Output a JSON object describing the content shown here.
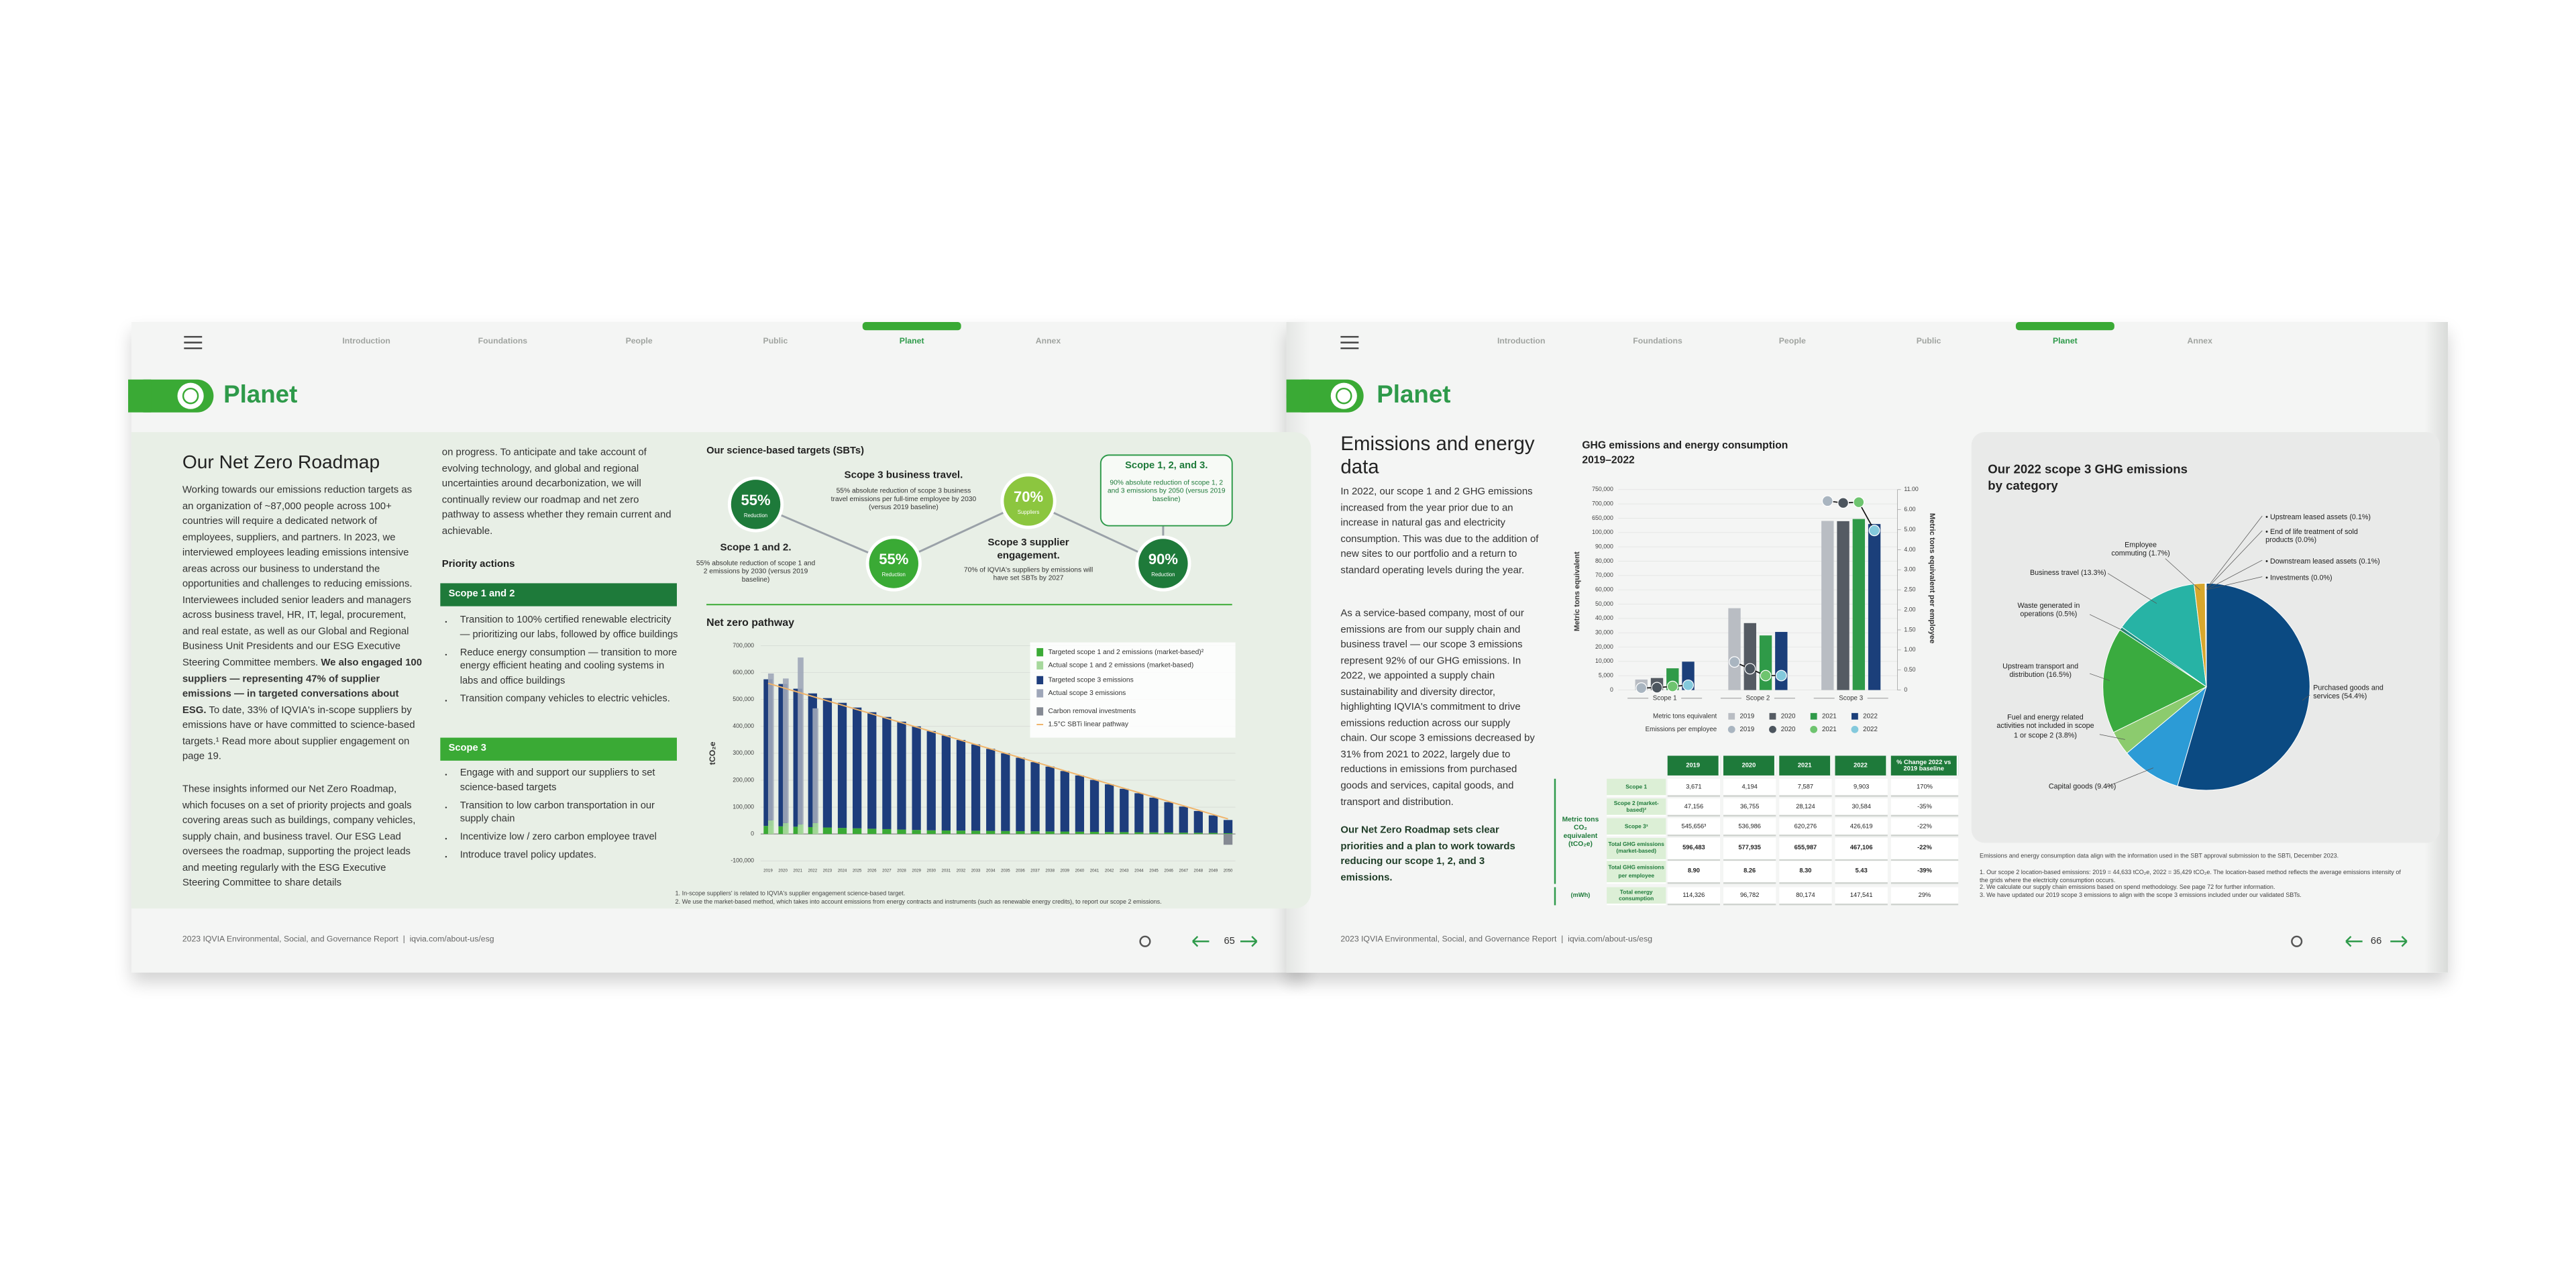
{
  "nav": [
    "Introduction",
    "Foundations",
    "People",
    "Public",
    "Planet",
    "Annex"
  ],
  "section": "Planet",
  "footer": "2023 IQVIA Environmental, Social, and Governance Report  |  iqvia.com/about-us/esg",
  "left_page": {
    "page_number": 65,
    "heading": "Our Net Zero Roadmap",
    "paragraph_1": {
      "before": "Working towards our emissions reduction targets as an organization of ~87,000 people across 100+ countries will require a dedicated network of employees, suppliers, and partners. In 2023, we interviewed employees leading emissions intensive areas across our business to understand the opportunities and challenges to reducing emissions. Interviewees included senior leaders and managers across business travel, HR, IT, legal, procurement, and real estate, as well as our Global and Regional Business Unit Presidents and our ESG Executive Steering Committee members. ",
      "bold": "We also engaged 100 suppliers — representing 47% of supplier emissions — in targeted conversations about ESG.",
      "after": " To date, 33% of IQVIA's in-scope suppliers by emissions have or have committed to science-based targets.¹ Read more about supplier engagement on page 19."
    },
    "paragraph_2": "These insights informed our Net Zero Roadmap, which focuses on a set of priority projects and goals covering areas such as buildings, company vehicles, supply chain, and business travel. Our ESG Lead oversees the roadmap, supporting the project leads and meeting regularly with the ESG Executive Steering Committee to share details",
    "paragraph_3": "on progress. To anticipate and take account of evolving technology, and global and regional uncertainties around decarbonization, we will continually review our roadmap and net zero pathway to assess whether they remain current and achievable.",
    "priority_actions": "Priority actions",
    "scope_1_2": {
      "title": "Scope 1 and 2",
      "bullets": [
        "Transition to 100% certified renewable electricity — prioritizing our labs, followed by office buildings",
        "Reduce energy consumption — transition to more energy efficient heating and cooling systems in labs and office buildings",
        "Transition company vehicles to electric vehicles."
      ]
    },
    "scope_3": {
      "title": "Scope 3",
      "bullets": [
        "Engage with and support our suppliers to set science-based targets",
        "Transition to low carbon transportation in our supply chain",
        "Incentivize low / zero carbon employee travel",
        "Introduce travel policy updates."
      ]
    },
    "sbt": {
      "title": "Our science-based targets (SBTs)",
      "targets": [
        {
          "value": "55%",
          "caption": "Reduction",
          "title": "Scope 1 and 2.",
          "text": "55% absolute reduction of scope 1 and 2 emissions by 2030 (versus 2019 baseline)"
        },
        {
          "value": "55%",
          "caption": "Reduction",
          "title": "Scope 3 business travel.",
          "text": "55% absolute reduction of scope 3 business travel emissions per full-time employee by 2030 (versus 2019 baseline)"
        },
        {
          "value": "70%",
          "caption": "Suppliers",
          "title": "Scope 3 supplier engagement.",
          "text": "70% of IQVIA's suppliers by emissions will have set SBTs by 2027"
        },
        {
          "value": "90%",
          "caption": "Reduction",
          "title": "Scope 1, 2, and 3.",
          "text": "90% absolute reduction of scope 1, 2 and 3 emissions by 2050 (versus 2019 baseline)"
        }
      ]
    },
    "footnotes": [
      "1. In-scope suppliers' is related to IQVIA's supplier engagement science-based target.",
      "2. We use the market-based method, which takes into account emissions from energy contracts and instruments (such as renewable energy credits), to report our scope 2 emissions."
    ]
  },
  "right_page": {
    "page_number": 66,
    "heading": "Emissions and energy data",
    "paragraphs": [
      "In 2022, our scope 1 and 2 GHG emissions increased from the year prior due to an increase in natural gas and electricity consumption. This was due to the addition of new sites to our portfolio and a return to standard operating levels during the year.",
      "As a service-based company, most of our emissions are from our supply chain and business travel — our scope 3 emissions represent 92% of our GHG emissions. In 2022, we appointed a supply chain sustainability and diversity director, highlighting IQVIA's commitment to drive emissions reduction across our supply chain. Our scope 3 emissions decreased by 31% from 2021 to 2022, largely due to reductions in emissions from purchased goods and services, capital goods, and transport and distribution."
    ],
    "bold_paragraph": "Our Net Zero Roadmap sets clear priorities and a plan to work towards reducing our scope 1, 2, and 3 emissions.",
    "table": {
      "header": [
        "2019",
        "2020",
        "2021",
        "2022",
        "% Change 2022 vs 2019 baseline"
      ],
      "group_labels": [
        "Metric tons CO₂ equivalent (tCO₂e)",
        "(mWh)"
      ],
      "rows": [
        [
          "Scope 1",
          "3,671",
          "4,194",
          "7,587",
          "9,903",
          "170%"
        ],
        [
          "Scope 2 (market-based)²",
          "47,156",
          "36,755",
          "28,124",
          "30,584",
          "-35%"
        ],
        [
          "Scope 3³",
          "545,656³",
          "536,986",
          "620,276",
          "426,619",
          "-22%"
        ],
        [
          "Total GHG emissions (market-based)",
          "596,483",
          "577,935",
          "655,987",
          "467,106",
          "-22%"
        ],
        [
          "Total GHG emissions per employee",
          "8.90",
          "8.26",
          "8.30",
          "5.43",
          "-39%"
        ],
        [
          "Total energy consumption",
          "114,326",
          "96,782",
          "80,174",
          "147,541",
          "29%"
        ]
      ]
    },
    "pie_note": "Emissions and energy consumption data align with the information used in the SBT approval submission to the SBTi, December 2023.",
    "footnotes": [
      "1. Our scope 2 location-based emissions: 2019 = 44,633 tCO₂e, 2022 = 35,429 tCO₂e. The location-based method reflects the average emissions intensity of the grids where the electricity consumption occurs.",
      "2. We calculate our supply chain emissions based on spend methodology. See page 72 for further information.",
      "3. We have updated our 2019 scope 3 emissions to align with the scope 3 emissions included under our validated SBTs."
    ]
  },
  "chart_data": [
    {
      "type": "bar",
      "title": "Net zero pathway",
      "y_label": "tCO₂e",
      "categories": [
        "2019",
        "2020",
        "2021",
        "2022",
        "2023",
        "2024",
        "2025",
        "2026",
        "2027",
        "2028",
        "2029",
        "2030",
        "2031",
        "2032",
        "2033",
        "2034",
        "2035",
        "2036",
        "2037",
        "2038",
        "2039",
        "2040",
        "2041",
        "2042",
        "2043",
        "2044",
        "2045",
        "2046",
        "2047",
        "2048",
        "2049",
        "2050"
      ],
      "ylim": [
        -100000,
        700000
      ],
      "yticks": [
        {
          "value": 700000,
          "label": "700,000"
        },
        {
          "value": 600000,
          "label": "600,000"
        },
        {
          "value": 500000,
          "label": "500,000"
        },
        {
          "value": 400000,
          "label": "400,000"
        },
        {
          "value": 300000,
          "label": "300,000"
        },
        {
          "value": 200000,
          "label": "200,000"
        },
        {
          "value": 100000,
          "label": "100,000"
        },
        0,
        {
          "value": -100000,
          "label": "-100,000"
        }
      ],
      "grid": true,
      "series": [
        {
          "name": "Targeted scope 1 and 2 emissions (market-based)²",
          "color": "#3aaa35",
          "values": [
            30000,
            28500,
            27000,
            25500,
            24000,
            22500,
            21000,
            19500,
            18000,
            16500,
            15000,
            13500,
            13000,
            12500,
            12000,
            11500,
            11000,
            10500,
            10000,
            9500,
            9000,
            8500,
            8000,
            7500,
            7000,
            6500,
            6000,
            5500,
            5000,
            4500,
            4000,
            3000
          ]
        },
        {
          "name": "Actual scope 1 and 2 emissions (market-based)",
          "color": "#a6d89c",
          "values": [
            50827,
            40949,
            35711,
            40487,
            null,
            null,
            null,
            null,
            null,
            null,
            null,
            null,
            null,
            null,
            null,
            null,
            null,
            null,
            null,
            null,
            null,
            null,
            null,
            null,
            null,
            null,
            null,
            null,
            null,
            null,
            null,
            null
          ]
        },
        {
          "name": "Targeted scope 3 emissions",
          "color": "#1d3d7c",
          "values": [
            545000,
            529000,
            513000,
            497000,
            481000,
            465000,
            449000,
            433000,
            417000,
            401000,
            385000,
            369000,
            353000,
            337000,
            321000,
            305000,
            289000,
            273000,
            257000,
            241000,
            225000,
            209000,
            193000,
            177000,
            161000,
            145000,
            129000,
            113000,
            97000,
            81000,
            65000,
            49000
          ]
        },
        {
          "name": "Actual scope 3 emissions",
          "color": "#9ea6b8",
          "values": [
            545656,
            536986,
            620276,
            426619,
            null,
            null,
            null,
            null,
            null,
            null,
            null,
            null,
            null,
            null,
            null,
            null,
            null,
            null,
            null,
            null,
            null,
            null,
            null,
            null,
            null,
            null,
            null,
            null,
            null,
            null,
            null,
            null
          ]
        },
        {
          "name": "Carbon removal investments",
          "color": "#858a93",
          "values": [
            null,
            null,
            null,
            null,
            null,
            null,
            null,
            null,
            null,
            null,
            null,
            null,
            null,
            null,
            null,
            null,
            null,
            null,
            null,
            null,
            null,
            null,
            null,
            null,
            null,
            null,
            null,
            null,
            null,
            null,
            null,
            -40000
          ]
        }
      ],
      "pathway": {
        "name": "1.5°C SBTi linear pathway",
        "color": "#f0b46a",
        "x": [
          "2019",
          "2050"
        ],
        "values": [
          560000,
          56000
        ]
      }
    },
    {
      "type": "bar",
      "title": "GHG emissions and energy consumption 2019–2022",
      "y_label": "Metric tons equivalent",
      "y2_label": "Metric tons equivalent per employee",
      "legend_bars": "Metric tons equivalent",
      "legend_dots": "Emissions per employee",
      "categories": [
        "Scope 1",
        "Scope 2",
        "Scope 3"
      ],
      "ylim": [
        0,
        750000
      ],
      "yticks": [
        0,
        {
          "value": 5000,
          "label": "5,000"
        },
        {
          "value": 10000,
          "label": "10,000"
        },
        {
          "value": 20000,
          "label": "20,000"
        },
        {
          "value": 30000,
          "label": "30,000"
        },
        {
          "value": 40000,
          "label": "40,000"
        },
        {
          "value": 50000,
          "label": "50,000"
        },
        {
          "value": 60000,
          "label": "60,000"
        },
        {
          "value": 70000,
          "label": "70,000"
        },
        {
          "value": 80000,
          "label": "80,000"
        },
        {
          "value": 90000,
          "label": "90,000"
        },
        {
          "value": 100000,
          "label": "100,000"
        },
        {
          "value": 650000,
          "label": "650,000"
        },
        {
          "value": 700000,
          "label": "700,000"
        },
        {
          "value": 750000,
          "label": "750,000"
        }
      ],
      "y2lim": [
        0,
        11
      ],
      "y2ticks": [
        0,
        {
          "value": 0.5,
          "label": "0.50"
        },
        {
          "value": 1,
          "label": "1.00"
        },
        {
          "value": 1.5,
          "label": "1.50"
        },
        {
          "value": 2,
          "label": "2.00"
        },
        {
          "value": 2.5,
          "label": "2.50"
        },
        {
          "value": 3,
          "label": "3.00"
        },
        {
          "value": 4,
          "label": "4.00"
        },
        {
          "value": 5,
          "label": "5.00"
        },
        {
          "value": 6,
          "label": "6.00"
        },
        {
          "value": 11,
          "label": "11.00"
        }
      ],
      "series": [
        {
          "name": "2019",
          "color": "#b9bdc3",
          "values": [
            3671,
            47156,
            545656
          ]
        },
        {
          "name": "2020",
          "color": "#555b63",
          "values": [
            4194,
            36755,
            536986
          ]
        },
        {
          "name": "2021",
          "color": "#2f9a48",
          "values": [
            7587,
            28124,
            620276
          ]
        },
        {
          "name": "2022",
          "color": "#1b3f7a",
          "values": [
            9903,
            30584,
            426619
          ]
        },
        {
          "name": "2019",
          "color": "#a9b5c0",
          "axis": "y2",
          "values": [
            0.05,
            0.7,
            8.15
          ]
        },
        {
          "name": "2020",
          "color": "#4c555e",
          "axis": "y2",
          "values": [
            0.06,
            0.53,
            7.67
          ]
        },
        {
          "name": "2021",
          "color": "#6ec46f",
          "axis": "y2",
          "values": [
            0.09,
            0.36,
            7.85
          ]
        },
        {
          "name": "2022",
          "color": "#83c9dc",
          "axis": "y2",
          "values": [
            0.12,
            0.36,
            4.96
          ]
        }
      ]
    },
    {
      "type": "pie",
      "title": "Our 2022 scope 3 GHG emissions by category",
      "categories": [
        "Purchased goods and services",
        "Capital goods",
        "Fuel and energy related activities not included in scope 1 or scope 2",
        "Upstream transport and distribution",
        "Waste generated in operations",
        "Business travel",
        "Employee commuting",
        "Upstream leased assets",
        "End of life treatment of sold products",
        "Downstream leased assets",
        "Investments"
      ],
      "values": [
        54.4,
        9.4,
        3.8,
        16.5,
        0.5,
        13.3,
        1.7,
        0.1,
        0.0,
        0.1,
        0.0
      ],
      "value_labels": [
        "(54.4%)",
        "(9.4%)",
        "(3.8%)",
        "(16.5%)",
        "(0.5%)",
        "(13.3%)",
        "(1.7%)",
        "(0.1%)",
        "(0.0%)",
        "(0.1%)",
        "(0.0%)"
      ],
      "colors": [
        "#0b4a82",
        "#2c9bd6",
        "#8ccb6e",
        "#3aab3f",
        "#1d8e7a",
        "#27b3a5",
        "#d8a72d",
        "#2a6db0",
        "#3f8fc4",
        "#1c5d97",
        "#6aa9d6"
      ]
    }
  ]
}
